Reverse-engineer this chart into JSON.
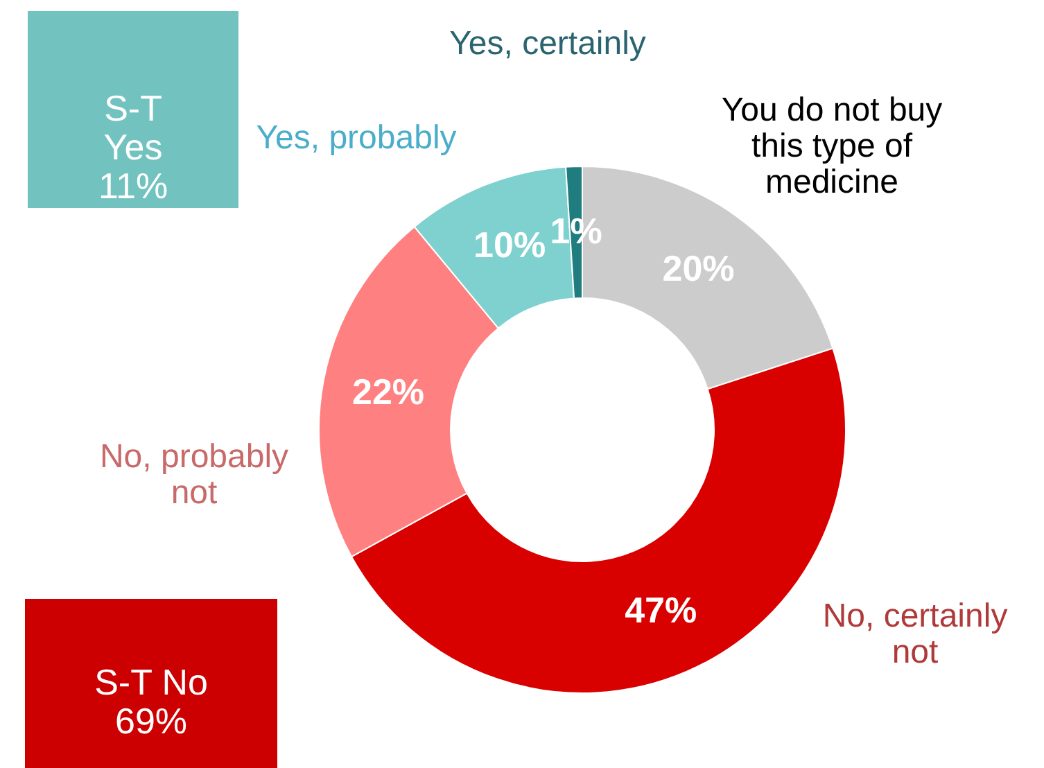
{
  "chart_data": {
    "type": "donut",
    "categories": [
      "You do not buy this type of medicine",
      "No, certainly not",
      "No, probably not",
      "Yes, probably",
      "Yes, certainly"
    ],
    "values": [
      20,
      47,
      22,
      10,
      1
    ],
    "colors": [
      "#cccccc",
      "#d90000",
      "#ff8080",
      "#7fd1d0",
      "#1f7d80"
    ],
    "value_labels": [
      "20%",
      "47%",
      "22%",
      "10%",
      "1%"
    ],
    "annotations": [
      "S-T Yes 11%",
      "S-T No 69%"
    ]
  }
}
